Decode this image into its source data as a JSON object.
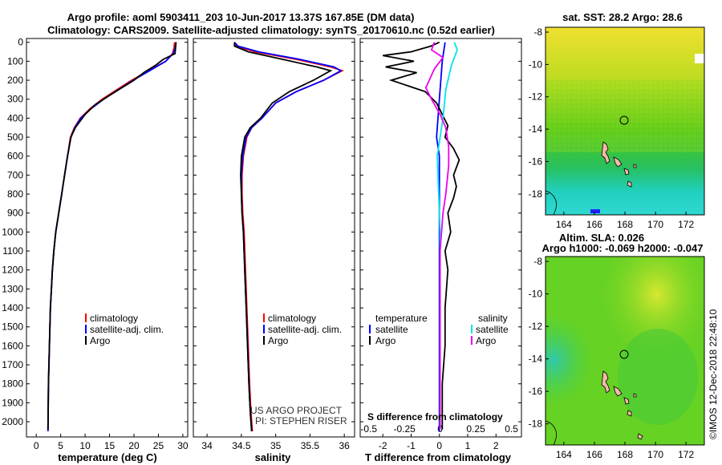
{
  "title_line1": "Argo profile: aoml 5903411_203 10-Jun-2017 13.37S 167.85E (DM data)",
  "title_line2": "Climatology: CARS2009. Satellite-adjusted climatology: synTS_20170610.nc (0.52d earlier)",
  "depth_ticks": [
    "0",
    "100",
    "200",
    "300",
    "400",
    "500",
    "600",
    "700",
    "800",
    "900",
    "1000",
    "1100",
    "1200",
    "1300",
    "1400",
    "1500",
    "1600",
    "1700",
    "1800",
    "1900",
    "2000"
  ],
  "colors": {
    "climatology": "#ff0000",
    "satellite": "#0000ff",
    "argo": "#000000",
    "sal_sat": "#00e5ee",
    "sal_argo": "#ee00ee"
  },
  "legend": {
    "climatology": "climatology",
    "satellite": "satellite-adj. clim.",
    "argo": "Argo",
    "temperature": "temperature",
    "salinity": "salinity",
    "satellite_short": "satellite",
    "argo_short": "Argo"
  },
  "credits": {
    "line1": "US ARGO PROJECT",
    "line2": "PI: STEPHEN RISER"
  },
  "map_top_title": "sat. SST: 28.2 Argo: 28.6",
  "map_bottom_title1": "Altim. SLA: 0.026",
  "map_bottom_title2": "Argo h1000: -0.069 h2000: -0.047",
  "map_lat_ticks": [
    "-8",
    "-10",
    "-12",
    "-14",
    "-16",
    "-18"
  ],
  "map_lon_ticks": [
    "164",
    "166",
    "168",
    "170",
    "172"
  ],
  "footer_stamp": "©IMOS 12-Dec-2018 22:48:10",
  "chart_data": [
    {
      "type": "line",
      "xlabel": "temperature (deg C)",
      "xticks": [
        "0",
        "5",
        "10",
        "15",
        "20",
        "25",
        "30"
      ],
      "xlim": [
        -2,
        31
      ],
      "ylim": [
        2080,
        -20
      ],
      "series": [
        {
          "name": "climatology",
          "x": [
            28.3,
            28.2,
            27.9,
            26.5,
            23.0,
            19.5,
            16.5,
            13.5,
            11.0,
            9.0,
            7.8,
            7.0,
            6.4,
            5.8,
            5.2,
            4.6,
            4.0,
            3.6,
            3.3,
            3.1,
            2.9,
            2.8,
            2.7,
            2.6,
            2.5,
            2.4
          ],
          "y": [
            0,
            30,
            60,
            100,
            150,
            200,
            250,
            300,
            350,
            400,
            450,
            500,
            600,
            700,
            800,
            900,
            1000,
            1100,
            1200,
            1300,
            1400,
            1500,
            1600,
            1700,
            1800,
            2050
          ]
        },
        {
          "name": "satellite-adj. clim.",
          "x": [
            28.6,
            28.4,
            28.0,
            26.5,
            23.2,
            19.8,
            16.8,
            13.8,
            11.2,
            9.1,
            7.9,
            7.1,
            6.4,
            5.8,
            5.2,
            4.6,
            4.0,
            3.6,
            3.3,
            3.1,
            2.9,
            2.8,
            2.7,
            2.6,
            2.5,
            2.4
          ],
          "y": [
            0,
            30,
            60,
            100,
            150,
            200,
            250,
            300,
            350,
            400,
            450,
            500,
            600,
            700,
            800,
            900,
            1000,
            1100,
            1200,
            1300,
            1400,
            1500,
            1600,
            1700,
            1800,
            2050
          ]
        },
        {
          "name": "Argo",
          "x": [
            28.6,
            28.5,
            28.4,
            26.0,
            24.5,
            22.0,
            20.0,
            17.5,
            15.0,
            12.0,
            10.0,
            8.0,
            7.1,
            6.4,
            5.8,
            5.2,
            4.6,
            4.0,
            3.6,
            3.3,
            3.1,
            2.9,
            2.8,
            2.7,
            2.6,
            2.5,
            2.4
          ],
          "y": [
            0,
            30,
            60,
            90,
            120,
            160,
            200,
            240,
            280,
            330,
            380,
            450,
            500,
            600,
            700,
            800,
            900,
            1000,
            1100,
            1200,
            1300,
            1400,
            1500,
            1600,
            1700,
            1800,
            2040
          ]
        }
      ]
    },
    {
      "type": "line",
      "xlabel": "salinity",
      "xticks": [
        "34",
        "34.5",
        "35",
        "35.5",
        "36"
      ],
      "xlim": [
        33.8,
        36.15
      ],
      "ylim": [
        2080,
        -20
      ],
      "series": [
        {
          "name": "climatology",
          "x": [
            34.4,
            34.42,
            34.7,
            35.3,
            35.8,
            35.97,
            35.7,
            35.3,
            35.0,
            34.8,
            34.65,
            34.58,
            34.53,
            34.51,
            34.51,
            34.52,
            34.54,
            34.56,
            34.58,
            34.6,
            34.62,
            34.64,
            34.66
          ],
          "y": [
            0,
            20,
            50,
            90,
            130,
            150,
            200,
            260,
            320,
            400,
            450,
            500,
            600,
            700,
            800,
            900,
            1000,
            1200,
            1400,
            1600,
            1800,
            1950,
            2050
          ]
        },
        {
          "name": "satellite-adj. clim.",
          "x": [
            34.4,
            34.45,
            34.75,
            35.35,
            35.85,
            35.95,
            35.7,
            35.3,
            35.0,
            34.8,
            34.65,
            34.57,
            34.52,
            34.5,
            34.5,
            34.51,
            34.53,
            34.55,
            34.57,
            34.59,
            34.61,
            34.63,
            34.65
          ],
          "y": [
            0,
            20,
            50,
            90,
            130,
            150,
            200,
            260,
            320,
            400,
            450,
            500,
            600,
            700,
            800,
            900,
            1000,
            1200,
            1400,
            1600,
            1800,
            1950,
            2050
          ]
        },
        {
          "name": "Argo",
          "x": [
            34.4,
            34.4,
            34.6,
            35.1,
            35.6,
            35.8,
            35.55,
            35.2,
            34.95,
            34.78,
            34.63,
            34.55,
            34.5,
            34.49,
            34.5,
            34.51,
            34.53,
            34.55,
            34.57,
            34.59,
            34.61,
            34.63,
            34.65
          ],
          "y": [
            0,
            20,
            50,
            90,
            130,
            150,
            200,
            260,
            320,
            400,
            450,
            500,
            600,
            700,
            800,
            900,
            1000,
            1200,
            1400,
            1600,
            1800,
            1950,
            2050
          ]
        }
      ]
    },
    {
      "type": "line",
      "xlabel": "T difference from climatology",
      "xticks": [
        "-2",
        "-1",
        "0",
        "1",
        "2"
      ],
      "xlim": [
        -2.8,
        2.9
      ],
      "top_label": "S difference from climatology",
      "top_ticks": [
        "-0.5",
        "-0.25",
        "0",
        "0.25",
        "0.5"
      ],
      "ylim": [
        2080,
        -20
      ],
      "series": [
        {
          "name": "satellite",
          "x": [
            0.2,
            0.1,
            0,
            -0.1,
            0,
            0,
            0,
            0,
            0,
            0,
            0
          ],
          "y": [
            0,
            100,
            300,
            500,
            600,
            800,
            1000,
            1300,
            1600,
            1900,
            2050
          ]
        },
        {
          "name": "Argo",
          "x": [
            0,
            -0.3,
            -1.0,
            -2.0,
            -0.9,
            -1.9,
            -0.8,
            -1.7,
            -0.5,
            -0.1,
            0.1,
            0.3,
            0.2,
            0.5,
            0.7,
            0.5,
            0.6,
            0.5,
            0.3,
            0.4,
            0.2,
            0.3,
            0.2,
            0.2,
            0.1,
            0.1,
            0.1,
            0.1
          ],
          "y": [
            0,
            20,
            50,
            70,
            100,
            130,
            160,
            200,
            260,
            320,
            380,
            440,
            500,
            560,
            620,
            700,
            760,
            820,
            900,
            1000,
            1100,
            1200,
            1400,
            1600,
            1800,
            1900,
            2000,
            2040
          ]
        },
        {
          "name": "salinity satellite",
          "x": [
            0.5,
            0.6,
            0.4,
            0.2,
            0.1,
            0.0,
            -0.1,
            -0.05,
            0,
            0,
            0
          ],
          "y": [
            0,
            40,
            120,
            250,
            400,
            500,
            600,
            800,
            1000,
            1500,
            2040
          ]
        },
        {
          "name": "salinity Argo",
          "x": [
            -0.2,
            -0.3,
            0.1,
            -0.2,
            -0.5,
            -0.3,
            0.0,
            0.2,
            0.3,
            0.3,
            0.2,
            0.1,
            0.0,
            0.0,
            0.0
          ],
          "y": [
            0,
            40,
            80,
            140,
            240,
            300,
            380,
            450,
            550,
            650,
            800,
            900,
            1100,
            1500,
            2040
          ]
        }
      ]
    }
  ]
}
